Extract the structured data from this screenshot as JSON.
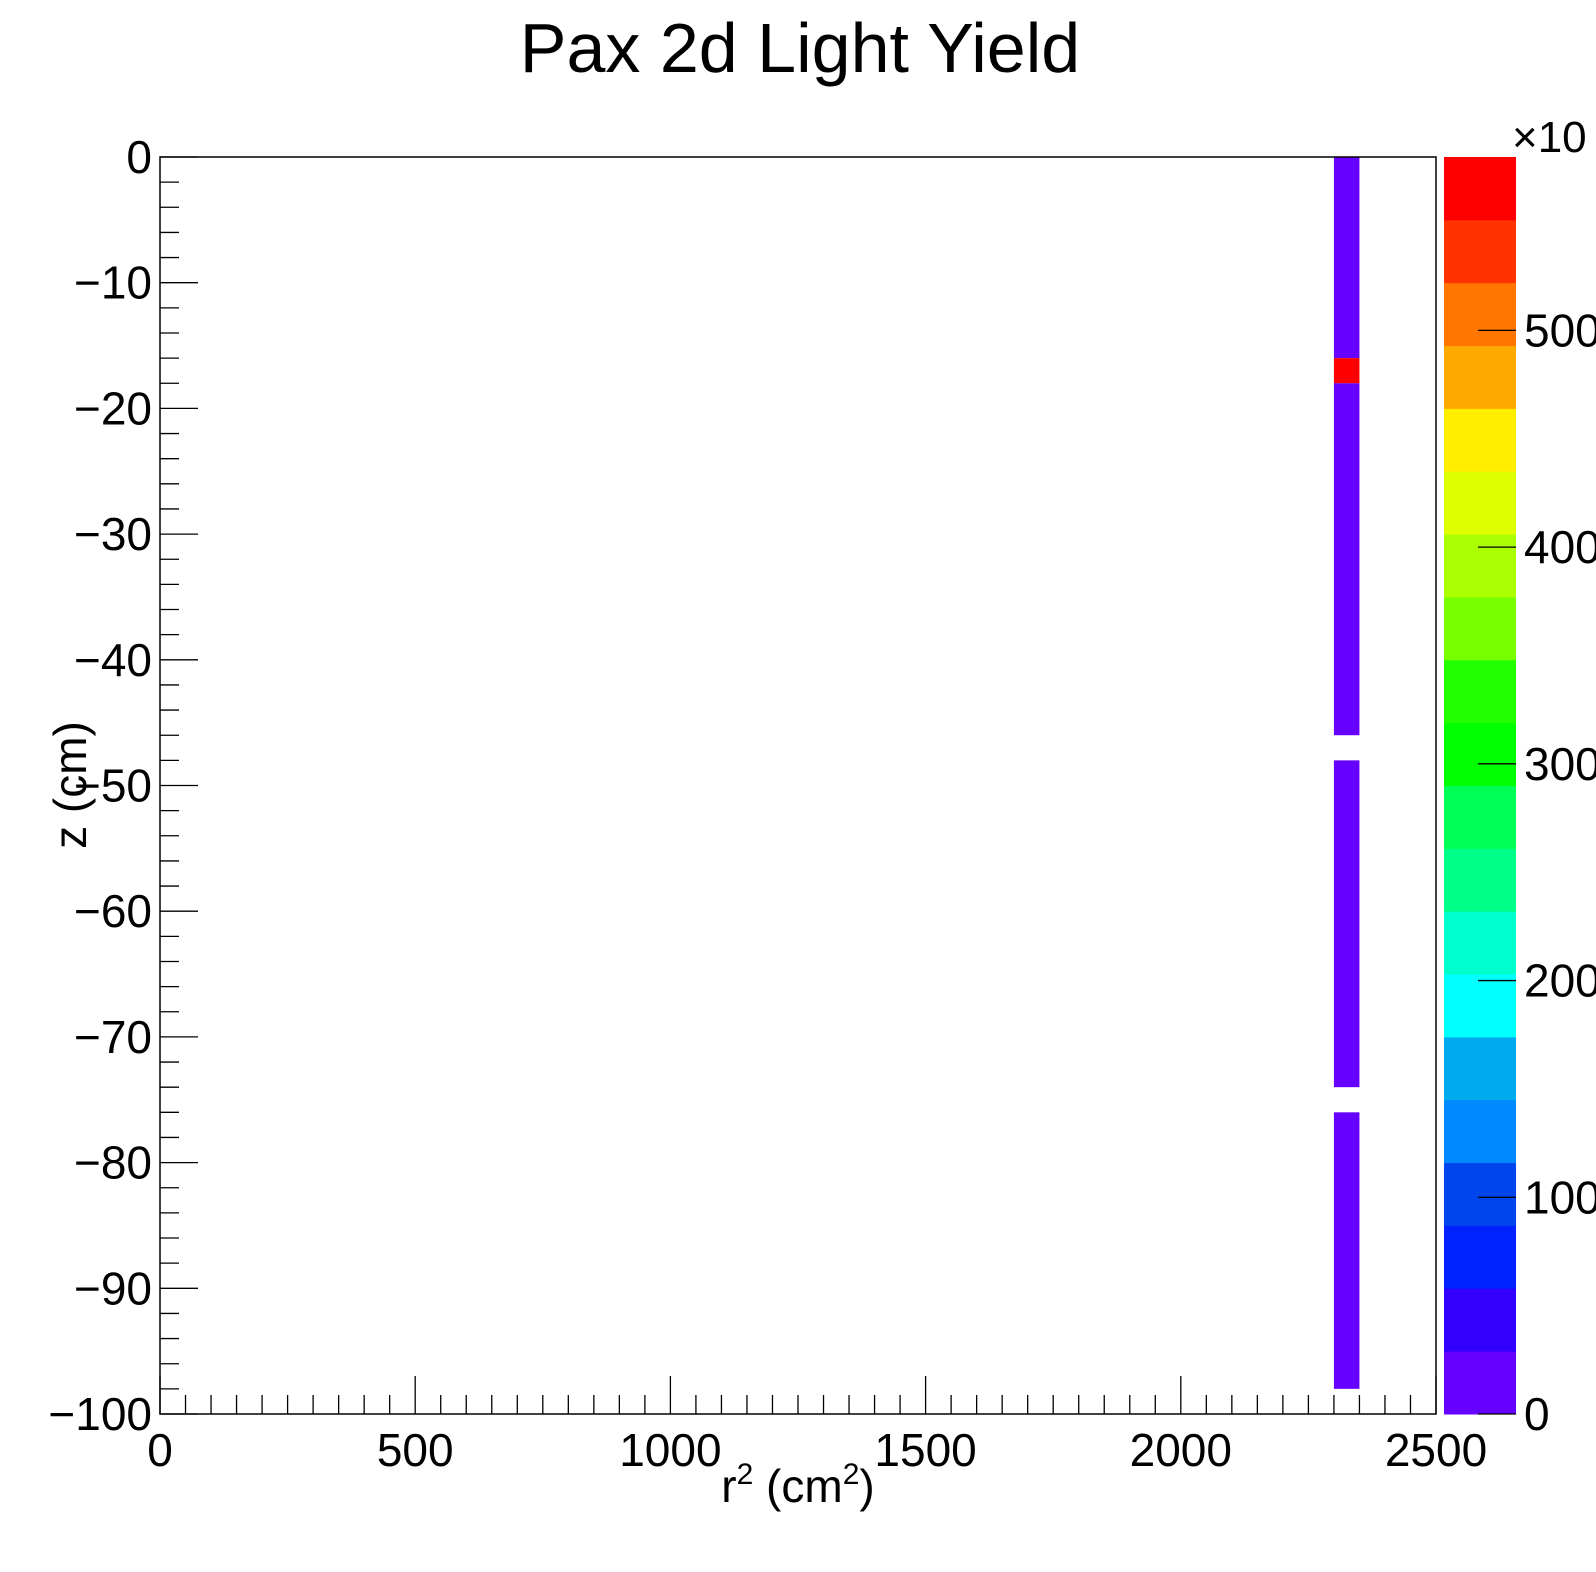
{
  "chart_data": {
    "type": "heatmap",
    "title": "Pax 2d Light Yield",
    "xlabel": {
      "base": "r",
      "sup": "2",
      "mid": " (cm",
      "sup2": "2",
      "end": ")"
    },
    "ylabel": "z (cm)",
    "xlim": [
      0,
      2500
    ],
    "ylim": [
      -100,
      0
    ],
    "x_ticks": [
      "0",
      "500",
      "1000",
      "1500",
      "2000",
      "2500"
    ],
    "x_tick_values": [
      0,
      500,
      1000,
      1500,
      2000,
      2500
    ],
    "y_ticks": [
      "0",
      "−10",
      "−20",
      "−30",
      "−40",
      "−50",
      "−60",
      "−70",
      "−80",
      "−90",
      "−100"
    ],
    "y_tick_values": [
      0,
      -10,
      -20,
      -30,
      -40,
      -50,
      -60,
      -70,
      -80,
      -90,
      -100
    ],
    "colorbar": {
      "range": [
        0,
        580
      ],
      "multiplier_label": "×10",
      "tick_labels": [
        "0",
        "100",
        "200",
        "300",
        "400",
        "500"
      ],
      "tick_values": [
        0,
        100,
        200,
        300,
        400,
        500
      ],
      "colors": [
        "#6600ff",
        "#3300ff",
        "#0022ff",
        "#0044ee",
        "#0088ff",
        "#00aaee",
        "#00ffff",
        "#00ffcc",
        "#00ff88",
        "#00ff55",
        "#00ff00",
        "#22ff00",
        "#77ff00",
        "#aaff00",
        "#ddff00",
        "#ffee00",
        "#ffaa00",
        "#ff7700",
        "#ff3300",
        "#ff0000"
      ]
    },
    "cells": [
      {
        "x0": 2300,
        "x1": 2350,
        "z0": -16,
        "z1": 0,
        "value": 5
      },
      {
        "x0": 2300,
        "x1": 2350,
        "z0": -18,
        "z1": -16,
        "value": 570
      },
      {
        "x0": 2300,
        "x1": 2350,
        "z0": -46,
        "z1": -18,
        "value": 5
      },
      {
        "x0": 2300,
        "x1": 2350,
        "z0": -74,
        "z1": -48,
        "value": 5
      },
      {
        "x0": 2300,
        "x1": 2350,
        "z0": -98,
        "z1": -76,
        "value": 5
      }
    ]
  }
}
